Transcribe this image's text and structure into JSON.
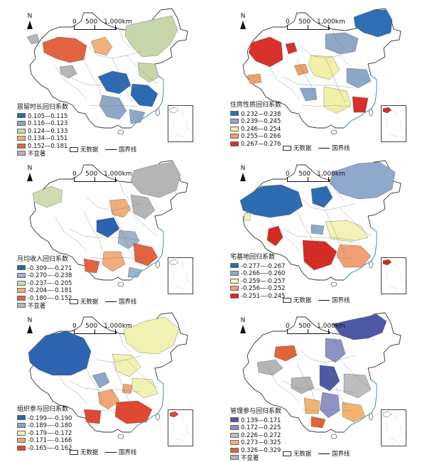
{
  "compass_label": "N",
  "scale": {
    "zero": "0",
    "mid": "500",
    "end": "1,000km"
  },
  "no_data_label": "无数据",
  "border_label": "国界线",
  "not_significant_label": "不显著",
  "panels": [
    {
      "title": "居留时长回归系数",
      "classes": [
        "0.105—0.115",
        "0.116—0.123",
        "0.124—0.133",
        "0.134—0.151",
        "0.152—0.181"
      ],
      "colors": [
        "#2b6bb3",
        "#8fa7c7",
        "#c7d6a9",
        "#f0b27a",
        "#e2633f"
      ]
    },
    {
      "title": "住房性质回归系数",
      "classes": [
        "0.232—0.238",
        "0.239—0.245",
        "0.246—0.254",
        "0.255—0.266",
        "0.267—0.276"
      ],
      "colors": [
        "#2e6eb5",
        "#8fa7c7",
        "#f2f0a6",
        "#efa067",
        "#d8302b"
      ]
    },
    {
      "title": "月均收入回归系数",
      "classes": [
        "-0.309—-0.271",
        "-0.270—-0.238",
        "-0.237—-0.205",
        "-0.204—-0.181",
        "-0.180—-0.152"
      ],
      "colors": [
        "#2b63b1",
        "#9db2cb",
        "#cfdcad",
        "#f2ad7b",
        "#e26240"
      ]
    },
    {
      "title": "宅基地回归系数",
      "classes": [
        "-0.277—-0.267",
        "-0.266—-0.260",
        "-0.259—-0.257",
        "-0.256—-0.252",
        "-0.251—-0.245"
      ],
      "colors": [
        "#2e6cb2",
        "#8fa9cc",
        "#f4f2b8",
        "#f0a072",
        "#d52b22"
      ]
    },
    {
      "title": "组织参与回归系数",
      "classes": [
        "-0.199—-0.190",
        "-0.189—-0.180",
        "-0.179—-0.172",
        "-0.171—-0.166",
        "-0.165—-0.162"
      ],
      "colors": [
        "#2e64b0",
        "#8ea6c2",
        "#f1f1b4",
        "#f4a677",
        "#e0482f"
      ]
    },
    {
      "title": "管理参与回归系数",
      "classes": [
        "0.139—0.171",
        "0.172—0.225",
        "0.226—0.272",
        "0.273—0.325",
        "0.326—0.329"
      ],
      "colors": [
        "#4d59a4",
        "#8e92c4",
        "#bdbdbd",
        "#f1b46f",
        "#e2633a"
      ]
    }
  ],
  "not_significant_color": "#b5b5b5"
}
